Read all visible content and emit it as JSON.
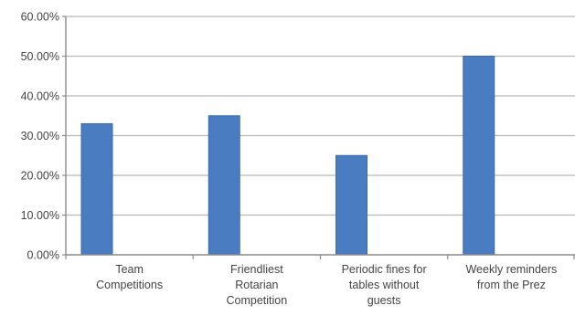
{
  "chart_data": {
    "type": "bar",
    "title": "",
    "xlabel": "",
    "ylabel": "",
    "categories": [
      [
        "Team",
        "Competitions"
      ],
      [
        "Friendliest",
        "Rotarian",
        "Competition"
      ],
      [
        "Periodic fines for",
        "tables without",
        "guests"
      ],
      [
        "Weekly reminders",
        "from the Prez"
      ]
    ],
    "series": [
      {
        "values": [
          0.33,
          0.35,
          0.25,
          0.5
        ]
      }
    ],
    "ylim": [
      0,
      0.6
    ],
    "yticks": [
      "0.00%",
      "10.00%",
      "20.00%",
      "30.00%",
      "40.00%",
      "50.00%",
      "60.00%"
    ],
    "y_format": "percent",
    "grid": true,
    "legend": "none",
    "bar_color": "#4a7cc1",
    "bar_edge_color": "#3f6aa8",
    "grid_color": "#b8b8b8",
    "axis_color": "#8c8c8c"
  }
}
